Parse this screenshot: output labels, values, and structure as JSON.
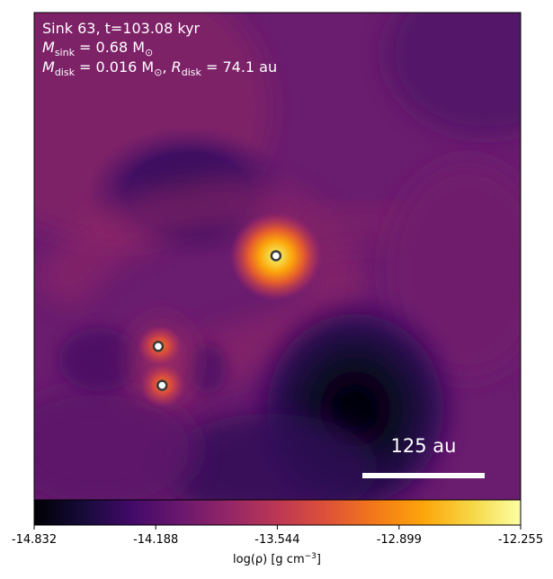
{
  "chart_data": {
    "type": "heatmap",
    "title_line1": "Sink 63, t=103.08 kyr",
    "title_line2": {
      "symbol": "M",
      "sub": "sink",
      "rest": " = 0.68 M",
      "unit_sub": "⊙"
    },
    "title_line3": {
      "symbol1": "M",
      "sub1": "disk",
      "rest1": " = 0.016 M",
      "unit_sub1": "⊙",
      "sep": ", ",
      "symbol2": "R",
      "sub2": "disk",
      "rest2": " = 74.1 au"
    },
    "scale_bar_label": "125 au",
    "colorbar": {
      "label": "log(ρ) [g cm",
      "label_exp": "−3",
      "label_close": "]",
      "ticks": [
        "-14.832",
        "-14.188",
        "-13.544",
        "-12.899",
        "-12.255"
      ],
      "range": [
        -14.832,
        -12.255
      ],
      "colormap": "inferno"
    },
    "sinks": [
      {
        "id": "sink-a",
        "x_frac": 0.497,
        "y_frac": 0.499
      },
      {
        "id": "sink-b",
        "x_frac": 0.255,
        "y_frac": 0.685
      },
      {
        "id": "sink-c",
        "x_frac": 0.263,
        "y_frac": 0.765
      }
    ],
    "colors": {
      "background_mid": "#6a1c6e",
      "scale_bar": "#ffffff",
      "sink_fill": "#ffffff",
      "sink_edge": "#3a3a3a"
    }
  }
}
